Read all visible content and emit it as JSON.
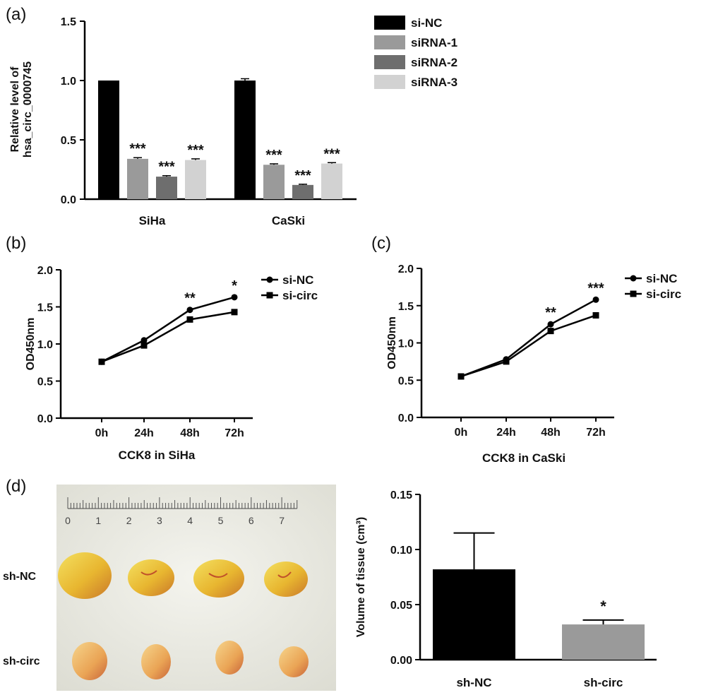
{
  "panels": {
    "a": "(a)",
    "b": "(b)",
    "c": "(c)",
    "d": "(d)"
  },
  "photo": {
    "row_labels": [
      "sh-NC",
      "sh-circ"
    ],
    "ruler_numbers": [
      "0",
      "1",
      "2",
      "3",
      "4",
      "5",
      "6",
      "7"
    ]
  },
  "chart_data": [
    {
      "id": "a",
      "type": "bar",
      "title": "",
      "xlabel": "",
      "ylabel": [
        "Relative level of",
        "hsa_circ_0000745"
      ],
      "categories": [
        "SiHa",
        "CaSki"
      ],
      "ylim": [
        0.0,
        1.5
      ],
      "yticks": [
        "0.0",
        "0.5",
        "1.0",
        "1.5"
      ],
      "series": [
        {
          "name": "si-NC",
          "color": "#000000",
          "values": [
            1.0,
            1.0
          ],
          "errors": [
            0.0,
            0.015
          ],
          "sig": [
            "",
            ""
          ]
        },
        {
          "name": "siRNA-1",
          "color": "#9a9a9a",
          "values": [
            0.34,
            0.29
          ],
          "errors": [
            0.01,
            0.008
          ],
          "sig": [
            "***",
            "***"
          ]
        },
        {
          "name": "siRNA-2",
          "color": "#6e6e6e",
          "values": [
            0.19,
            0.12
          ],
          "errors": [
            0.008,
            0.006
          ],
          "sig": [
            "***",
            "***"
          ]
        },
        {
          "name": "siRNA-3",
          "color": "#d2d2d2",
          "values": [
            0.33,
            0.3
          ],
          "errors": [
            0.01,
            0.008
          ],
          "sig": [
            "***",
            "***"
          ]
        }
      ],
      "legend": "top-right"
    },
    {
      "id": "b",
      "type": "line",
      "title": "",
      "xlabel": "CCK8 in SiHa",
      "ylabel": "OD450nm",
      "categories": [
        "0h",
        "24h",
        "48h",
        "72h"
      ],
      "ylim": [
        0.0,
        2.0
      ],
      "yticks": [
        "0.0",
        "0.5",
        "1.0",
        "1.5",
        "2.0"
      ],
      "series": [
        {
          "name": "si-NC",
          "marker": "circle",
          "values": [
            0.76,
            1.05,
            1.46,
            1.63
          ]
        },
        {
          "name": "si-circ",
          "marker": "square",
          "values": [
            0.76,
            0.98,
            1.33,
            1.43
          ]
        }
      ],
      "sig": [
        "",
        "",
        "**",
        "*"
      ],
      "legend": "top-right"
    },
    {
      "id": "c",
      "type": "line",
      "title": "",
      "xlabel": "CCK8 in CaSki",
      "ylabel": "OD450nm",
      "categories": [
        "0h",
        "24h",
        "48h",
        "72h"
      ],
      "ylim": [
        0.0,
        2.0
      ],
      "yticks": [
        "0.0",
        "0.5",
        "1.0",
        "1.5",
        "2.0"
      ],
      "series": [
        {
          "name": "si-NC",
          "marker": "circle",
          "values": [
            0.55,
            0.78,
            1.25,
            1.58
          ]
        },
        {
          "name": "si-circ",
          "marker": "square",
          "values": [
            0.55,
            0.75,
            1.16,
            1.37
          ]
        }
      ],
      "sig": [
        "",
        "",
        "**",
        "***"
      ],
      "legend": "top-right"
    },
    {
      "id": "d",
      "type": "bar",
      "title": "",
      "xlabel": "",
      "ylabel": "Volume of tissue (cm³)",
      "categories": [
        "sh-NC",
        "sh-circ"
      ],
      "ylim": [
        0.0,
        0.15
      ],
      "yticks": [
        "0.00",
        "0.05",
        "0.10",
        "0.15"
      ],
      "values": [
        0.082,
        0.032
      ],
      "errors": [
        0.033,
        0.004
      ],
      "colors": [
        "#000000",
        "#9a9a9a"
      ],
      "sig": [
        "",
        "*"
      ]
    }
  ]
}
